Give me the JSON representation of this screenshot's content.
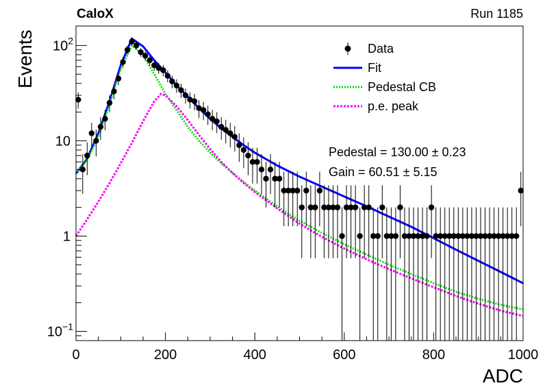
{
  "header": {
    "left_label": "CaloX",
    "right_label": "Run 1185"
  },
  "chart_data": {
    "type": "scatter",
    "xlabel": "ADC",
    "ylabel": "Events",
    "xlim": [
      0,
      1000
    ],
    "ylim": [
      0.08,
      160
    ],
    "yscale": "log",
    "grid": false,
    "legend_position": "top-right",
    "x_ticks": [
      {
        "value": 0,
        "label": "0"
      },
      {
        "value": 200,
        "label": "200"
      },
      {
        "value": 400,
        "label": "400"
      },
      {
        "value": 600,
        "label": "600"
      },
      {
        "value": 800,
        "label": "800"
      },
      {
        "value": 1000,
        "label": "1000"
      }
    ],
    "y_ticks": [
      {
        "value": 0.1,
        "base": "10",
        "exp": "−1"
      },
      {
        "value": 1,
        "base": "1",
        "exp": ""
      },
      {
        "value": 10,
        "base": "10",
        "exp": ""
      },
      {
        "value": 100,
        "base": "10",
        "exp": "2"
      }
    ],
    "series": [
      {
        "name": "Data",
        "kind": "points",
        "color": "#000000",
        "x": [
          5,
          15,
          25,
          35,
          45,
          55,
          65,
          75,
          85,
          95,
          105,
          115,
          125,
          135,
          145,
          155,
          165,
          175,
          185,
          195,
          205,
          215,
          225,
          235,
          245,
          255,
          265,
          275,
          285,
          295,
          305,
          315,
          325,
          335,
          345,
          355,
          365,
          375,
          385,
          395,
          405,
          415,
          425,
          435,
          445,
          455,
          465,
          475,
          485,
          495,
          505,
          515,
          525,
          535,
          545,
          555,
          565,
          575,
          585,
          595,
          605,
          615,
          625,
          635,
          645,
          655,
          665,
          675,
          685,
          695,
          705,
          715,
          725,
          735,
          745,
          755,
          765,
          775,
          785,
          795,
          805,
          815,
          825,
          835,
          845,
          855,
          865,
          875,
          885,
          895,
          905,
          915,
          925,
          935,
          945,
          955,
          965,
          975,
          985,
          995
        ],
        "y": [
          27,
          5,
          7,
          12,
          10,
          14,
          17,
          25,
          33,
          45,
          67,
          90,
          110,
          100,
          85,
          78,
          70,
          62,
          58,
          55,
          48,
          42,
          38,
          34,
          30,
          27,
          26,
          22,
          21,
          19,
          17,
          16,
          14,
          13,
          12,
          11,
          9,
          8,
          7,
          6,
          6,
          5,
          4,
          5,
          4,
          4,
          3,
          3,
          3,
          3,
          2,
          3,
          2,
          2,
          3,
          2,
          2,
          2,
          2,
          1,
          2,
          2,
          2,
          1,
          2,
          2,
          1,
          1,
          2,
          1,
          1,
          1,
          2,
          1,
          1,
          1,
          1,
          1,
          1,
          2,
          1,
          1,
          1,
          1,
          1,
          1,
          1,
          1,
          1,
          1,
          1,
          1,
          1,
          1,
          1,
          1,
          1,
          1,
          1,
          3
        ]
      },
      {
        "name": "Fit",
        "kind": "line",
        "color": "#0000ff",
        "x": [
          0,
          25,
          50,
          75,
          100,
          125,
          150,
          175,
          200,
          225,
          250,
          275,
          300,
          325,
          350,
          375,
          400,
          450,
          500,
          550,
          600,
          650,
          700,
          750,
          800,
          850,
          900,
          950,
          1000
        ],
        "y": [
          4.5,
          6.5,
          12,
          26,
          62,
          118,
          98,
          70,
          52,
          38,
          29,
          22,
          17,
          13.5,
          11,
          9,
          7.5,
          5.5,
          4.2,
          3.3,
          2.6,
          2.05,
          1.6,
          1.25,
          0.95,
          0.72,
          0.55,
          0.42,
          0.32
        ]
      },
      {
        "name": "Pedestal CB",
        "kind": "dotted",
        "color": "#00dd00",
        "x": [
          0,
          25,
          50,
          75,
          100,
          125,
          150,
          175,
          200,
          225,
          250,
          275,
          300,
          325,
          350,
          375,
          400,
          450,
          500,
          550,
          600,
          650,
          700,
          750,
          800,
          850,
          900,
          950,
          1000
        ],
        "y": [
          4.5,
          6.3,
          11,
          24,
          56,
          100,
          80,
          50,
          31,
          21,
          14,
          10,
          7.5,
          5.8,
          4.6,
          3.7,
          3,
          2.05,
          1.45,
          1.08,
          0.82,
          0.64,
          0.5,
          0.4,
          0.32,
          0.26,
          0.22,
          0.19,
          0.17
        ]
      },
      {
        "name": "p.e. peak",
        "kind": "dotted",
        "color": "#ff00ff",
        "x": [
          0,
          25,
          50,
          75,
          100,
          125,
          150,
          175,
          190,
          200,
          225,
          250,
          275,
          300,
          325,
          350,
          375,
          400,
          450,
          500,
          550,
          600,
          650,
          700,
          750,
          800,
          850,
          900,
          950,
          1000
        ],
        "y": [
          1.0,
          1.5,
          2.3,
          3.6,
          5.8,
          9.5,
          16,
          26,
          31,
          30,
          23,
          16.5,
          11.5,
          8.2,
          6,
          4.6,
          3.6,
          2.9,
          1.95,
          1.35,
          0.98,
          0.74,
          0.57,
          0.45,
          0.36,
          0.29,
          0.235,
          0.195,
          0.165,
          0.145
        ]
      }
    ],
    "annotations": [
      "Pedestal = 130.00 ± 0.23",
      "Gain = 60.51 ± 5.15"
    ]
  }
}
